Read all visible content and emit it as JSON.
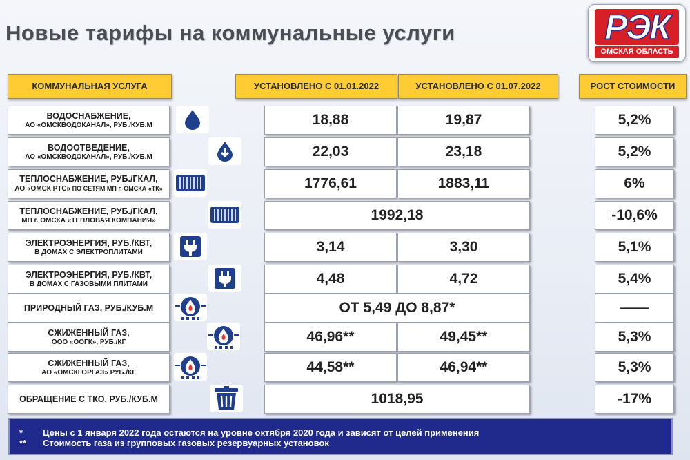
{
  "title": "Новые тарифы на коммунальные услуги",
  "logo": {
    "main": "РЭК",
    "sub": "ОМСКАЯ ОБЛАСТЬ"
  },
  "headers": {
    "service": "КОММУНАЛЬНАЯ УСЛУГА",
    "period1": "УСТАНОВЛЕНО С 01.01.2022",
    "period2": "УСТАНОВЛЕНО С 01.07.2022",
    "growth": "РОСТ СТОИМОСТИ"
  },
  "rows": [
    {
      "name": "ВОДОСНАБЖЕНИЕ,",
      "sub": "АО «ОМСКВОДОКАНАЛ», РУБ./КУБ.М",
      "icon": "water-drop-icon",
      "v1": "18,88",
      "v2": "19,87",
      "growth": "5,2%"
    },
    {
      "name": "ВОДООТВЕДЕНИЕ,",
      "sub": "АО «ОМСКВОДОКАНАЛ», РУБ./КУБ.М",
      "icon": "drain-drop-icon",
      "v1": "22,03",
      "v2": "23,18",
      "growth": "5,2%"
    },
    {
      "name": "ТЕПЛОСНАБЖЕНИЕ, РУБ./ГКАЛ,",
      "sub": "АО «ОМСК РТС»",
      "sub_small": " ПО СЕТЯМ МП г. ОМСКА «ТК»",
      "icon": "radiator-icon",
      "v1": "1776,61",
      "v2": "1883,11",
      "growth": "6%"
    },
    {
      "name": "ТЕПЛОСНАБЖЕНИЕ, РУБ./ГКАЛ,",
      "sub": "МП г. ОМСКА «ТЕПЛОВАЯ КОМПАНИЯ»",
      "icon": "radiator-icon",
      "merged": "1992,18",
      "growth": "-10,6%"
    },
    {
      "name": "ЭЛЕКТРОЭНЕРГИЯ, РУБ./КВТ,",
      "sub": "В ДОМАХ С ЭЛЕКТРОПЛИТАМИ",
      "icon": "plug-icon",
      "v1": "3,14",
      "v2": "3,30",
      "growth": "5,1%"
    },
    {
      "name": "ЭЛЕКТРОЭНЕРГИЯ, РУБ./КВТ,",
      "sub": "В ДОМАХ С ГАЗОВЫМИ ПЛИТАМИ",
      "icon": "plug-icon",
      "v1": "4,48",
      "v2": "4,72",
      "growth": "5,4%"
    },
    {
      "name": "ПРИРОДНЫЙ ГАЗ, РУБ./КУБ.М",
      "sub": "",
      "icon": "gas-flame-icon",
      "merged": "ОТ 5,49 ДО 8,87*",
      "growth": "——"
    },
    {
      "name": "СЖИЖЕННЫЙ ГАЗ,",
      "sub": "ООО «ООГК», РУБ./КГ",
      "icon": "gas-flame-icon",
      "v1": "46,96**",
      "v2": "49,45**",
      "growth": "5,3%"
    },
    {
      "name": "СЖИЖЕННЫЙ ГАЗ,",
      "sub": "АО «ОМСКГОРГАЗ» РУБ./КГ",
      "icon": "gas-flame-icon",
      "v1": "44,58**",
      "v2": "46,94**",
      "growth": "5,3%"
    },
    {
      "name": "ОБРАЩЕНИЕ С ТКО, РУБ./КУБ.М",
      "sub": "",
      "icon": "trash-bin-icon",
      "merged": "1018,95",
      "growth": "-17%"
    }
  ],
  "footnotes": [
    {
      "mark": "*",
      "text": "Цены с 1 января 2022 года остаются на уровне октября 2020 года и зависят от целей применения"
    },
    {
      "mark": "**",
      "text": "Стоимость газа из групповых газовых резервуарных установок"
    }
  ]
}
